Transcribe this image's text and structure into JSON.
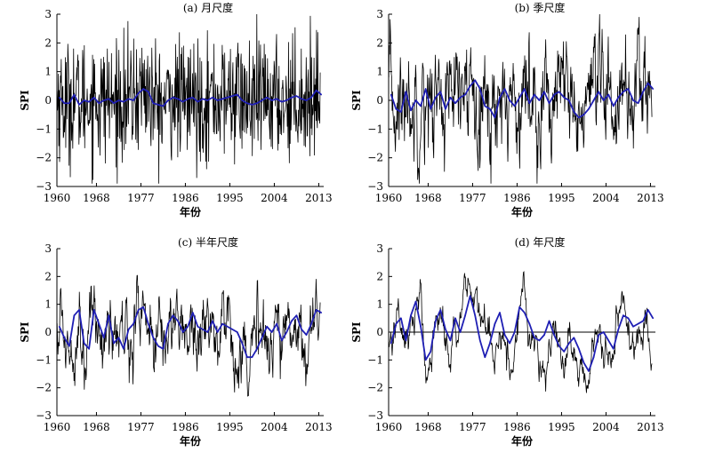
{
  "chart_data": [
    {
      "type": "line",
      "title": "(a) 月尺度",
      "xlabel": "年份",
      "ylabel": "SPI",
      "xlim": [
        1960,
        2014
      ],
      "ylim": [
        -3,
        3
      ],
      "xticks": [
        "1960",
        "1968",
        "1977",
        "1986",
        "1995",
        "2004",
        "2013"
      ],
      "yticks": [
        "−3",
        "−2",
        "−1",
        "0",
        "1",
        "2",
        "3"
      ],
      "zero_line": false,
      "colors": {
        "raw": "#000000",
        "smooth": "#1f1fb4"
      },
      "series": [
        {
          "x": [
            1960.5,
            1961.5,
            1962.5,
            1963.5,
            1964.5,
            1965.5,
            1966.5,
            1967.5,
            1968.5,
            1969.5,
            1970.5,
            1971.5,
            1972.5,
            1973.5,
            1974.5,
            1975.5,
            1976.5,
            1977.5,
            1978.5,
            1979.5,
            1980.5,
            1981.5,
            1982.5,
            1983.5,
            1984.5,
            1985.5,
            1986.5,
            1987.5,
            1988.5,
            1989.5,
            1990.5,
            1991.5,
            1992.5,
            1993.5,
            1994.5,
            1995.5,
            1996.5,
            1997.5,
            1998.5,
            1999.5,
            2000.5,
            2001.5,
            2002.5,
            2003.5,
            2004.5,
            2005.5,
            2006.5,
            2007.5,
            2008.5,
            2009.5,
            2010.5,
            2011.5,
            2012.5,
            2013.5
          ],
          "values": [
            0.1,
            -0.1,
            -0.1,
            0.2,
            -0.15,
            0.0,
            -0.05,
            0.1,
            -0.1,
            0.0,
            0.05,
            -0.1,
            0.0,
            -0.05,
            0.05,
            0.0,
            0.25,
            0.4,
            0.3,
            -0.1,
            -0.15,
            -0.2,
            0.0,
            0.1,
            0.05,
            -0.05,
            0.05,
            0.1,
            -0.05,
            0.05,
            0.0,
            0.1,
            0.0,
            0.05,
            0.1,
            0.15,
            0.2,
            0.0,
            -0.1,
            -0.15,
            -0.1,
            0.0,
            0.1,
            0.0,
            0.05,
            -0.05,
            0.0,
            0.1,
            0.15,
            0.05,
            0.0,
            0.1,
            0.35,
            0.2
          ]
        }
      ]
    },
    {
      "type": "line",
      "title": "(b) 季尺度",
      "xlabel": "年份",
      "ylabel": "SPI",
      "xlim": [
        1960,
        2014
      ],
      "ylim": [
        -3,
        3
      ],
      "xticks": [
        "1960",
        "1968",
        "1977",
        "1986",
        "1995",
        "2004",
        "2013"
      ],
      "yticks": [
        "−3",
        "−2",
        "−1",
        "0",
        "1",
        "2",
        "3"
      ],
      "zero_line": false,
      "colors": {
        "raw": "#000000",
        "smooth": "#1f1fb4"
      },
      "series": [
        {
          "x": [
            1960.5,
            1961.5,
            1962.5,
            1963.5,
            1964.5,
            1965.5,
            1966.5,
            1967.5,
            1968.5,
            1969.5,
            1970.5,
            1971.5,
            1972.5,
            1973.5,
            1974.5,
            1975.5,
            1976.5,
            1977.5,
            1978.5,
            1979.5,
            1980.5,
            1981.5,
            1982.5,
            1983.5,
            1984.5,
            1985.5,
            1986.5,
            1987.5,
            1988.5,
            1989.5,
            1990.5,
            1991.5,
            1992.5,
            1993.5,
            1994.5,
            1995.5,
            1996.5,
            1997.5,
            1998.5,
            1999.5,
            2000.5,
            2001.5,
            2002.5,
            2003.5,
            2004.5,
            2005.5,
            2006.5,
            2007.5,
            2008.5,
            2009.5,
            2010.5,
            2011.5,
            2012.5,
            2013.5
          ],
          "values": [
            0.2,
            -0.3,
            -0.4,
            0.3,
            -0.35,
            0.0,
            -0.2,
            0.4,
            -0.3,
            0.1,
            0.3,
            -0.3,
            0.1,
            -0.1,
            0.1,
            0.2,
            0.5,
            0.7,
            0.4,
            -0.2,
            -0.3,
            -0.6,
            0.1,
            0.4,
            0.0,
            -0.2,
            0.1,
            0.4,
            -0.1,
            0.2,
            0.0,
            0.3,
            -0.1,
            0.2,
            0.3,
            0.1,
            0.0,
            -0.4,
            -0.6,
            -0.5,
            -0.3,
            0.0,
            0.3,
            0.0,
            0.2,
            -0.2,
            0.1,
            0.3,
            0.4,
            0.0,
            -0.1,
            0.3,
            0.6,
            0.4
          ]
        }
      ]
    },
    {
      "type": "line",
      "title": "(c) 半年尺度",
      "xlabel": "年份",
      "ylabel": "SPI",
      "xlim": [
        1960,
        2014
      ],
      "ylim": [
        -3,
        3
      ],
      "xticks": [
        "1960",
        "1968",
        "1977",
        "1986",
        "1995",
        "2004",
        "2013"
      ],
      "yticks": [
        "−3",
        "−2",
        "−1",
        "0",
        "1",
        "2",
        "3"
      ],
      "zero_line": false,
      "colors": {
        "raw": "#000000",
        "smooth": "#1f1fb4"
      },
      "series": [
        {
          "x": [
            1960.5,
            1961.5,
            1962.5,
            1963.5,
            1964.5,
            1965.5,
            1966.5,
            1967.5,
            1968.5,
            1969.5,
            1970.5,
            1971.5,
            1972.5,
            1973.5,
            1974.5,
            1975.5,
            1976.5,
            1977.5,
            1978.5,
            1979.5,
            1980.5,
            1981.5,
            1982.5,
            1983.5,
            1984.5,
            1985.5,
            1986.5,
            1987.5,
            1988.5,
            1989.5,
            1990.5,
            1991.5,
            1992.5,
            1993.5,
            1994.5,
            1995.5,
            1996.5,
            1997.5,
            1998.5,
            1999.5,
            2000.5,
            2001.5,
            2002.5,
            2003.5,
            2004.5,
            2005.5,
            2006.5,
            2007.5,
            2008.5,
            2009.5,
            2010.5,
            2011.5,
            2012.5,
            2013.5
          ],
          "values": [
            0.2,
            -0.2,
            -0.5,
            0.6,
            0.8,
            -0.4,
            -0.6,
            0.8,
            0.3,
            -0.2,
            0.6,
            -0.4,
            -0.2,
            -0.6,
            0.1,
            0.3,
            0.8,
            0.9,
            0.3,
            -0.2,
            -0.5,
            -0.6,
            0.3,
            0.6,
            0.4,
            0.0,
            0.2,
            0.7,
            0.2,
            0.1,
            0.0,
            0.4,
            0.0,
            0.3,
            0.2,
            0.1,
            0.0,
            -0.4,
            -0.9,
            -0.9,
            -0.6,
            -0.2,
            0.2,
            0.0,
            0.3,
            -0.3,
            0.0,
            0.4,
            0.6,
            0.1,
            -0.1,
            0.3,
            0.8,
            0.7
          ]
        }
      ]
    },
    {
      "type": "line",
      "title": "(d) 年尺度",
      "xlabel": "年份",
      "ylabel": "SPI",
      "xlim": [
        1960,
        2014
      ],
      "ylim": [
        -3,
        3
      ],
      "xticks": [
        "1960",
        "1968",
        "1977",
        "1986",
        "1995",
        "2004",
        "2013"
      ],
      "yticks": [
        "−3",
        "−2",
        "−1",
        "0",
        "1",
        "2",
        "3"
      ],
      "zero_line": true,
      "colors": {
        "raw": "#000000",
        "smooth": "#1f1fb4"
      },
      "series": [
        {
          "x": [
            1960.5,
            1961.5,
            1962.5,
            1963.5,
            1964.5,
            1965.5,
            1966.5,
            1967.5,
            1968.5,
            1969.5,
            1970.5,
            1971.5,
            1972.5,
            1973.5,
            1974.5,
            1975.5,
            1976.5,
            1977.5,
            1978.5,
            1979.5,
            1980.5,
            1981.5,
            1982.5,
            1983.5,
            1984.5,
            1985.5,
            1986.5,
            1987.5,
            1988.5,
            1989.5,
            1990.5,
            1991.5,
            1992.5,
            1993.5,
            1994.5,
            1995.5,
            1996.5,
            1997.5,
            1998.5,
            1999.5,
            2000.5,
            2001.5,
            2002.5,
            2003.5,
            2004.5,
            2005.5,
            2006.5,
            2007.5,
            2008.5,
            2009.5,
            2010.5,
            2011.5,
            2012.5,
            2013.5
          ],
          "values": [
            -0.4,
            0.3,
            0.5,
            -0.3,
            0.6,
            1.1,
            0.2,
            -1.0,
            -0.7,
            0.4,
            0.8,
            0.1,
            -0.3,
            0.5,
            0.0,
            0.6,
            1.3,
            0.6,
            -0.3,
            -0.9,
            -0.4,
            0.3,
            0.7,
            -0.1,
            -0.4,
            0.0,
            0.9,
            0.7,
            0.3,
            -0.2,
            -0.3,
            -0.1,
            0.4,
            -0.1,
            -0.5,
            -0.7,
            -0.4,
            -0.2,
            -0.6,
            -1.1,
            -1.4,
            -0.9,
            -0.1,
            0.0,
            -0.3,
            -0.6,
            0.1,
            0.6,
            0.5,
            0.2,
            0.3,
            0.4,
            0.8,
            0.5
          ]
        }
      ]
    }
  ]
}
